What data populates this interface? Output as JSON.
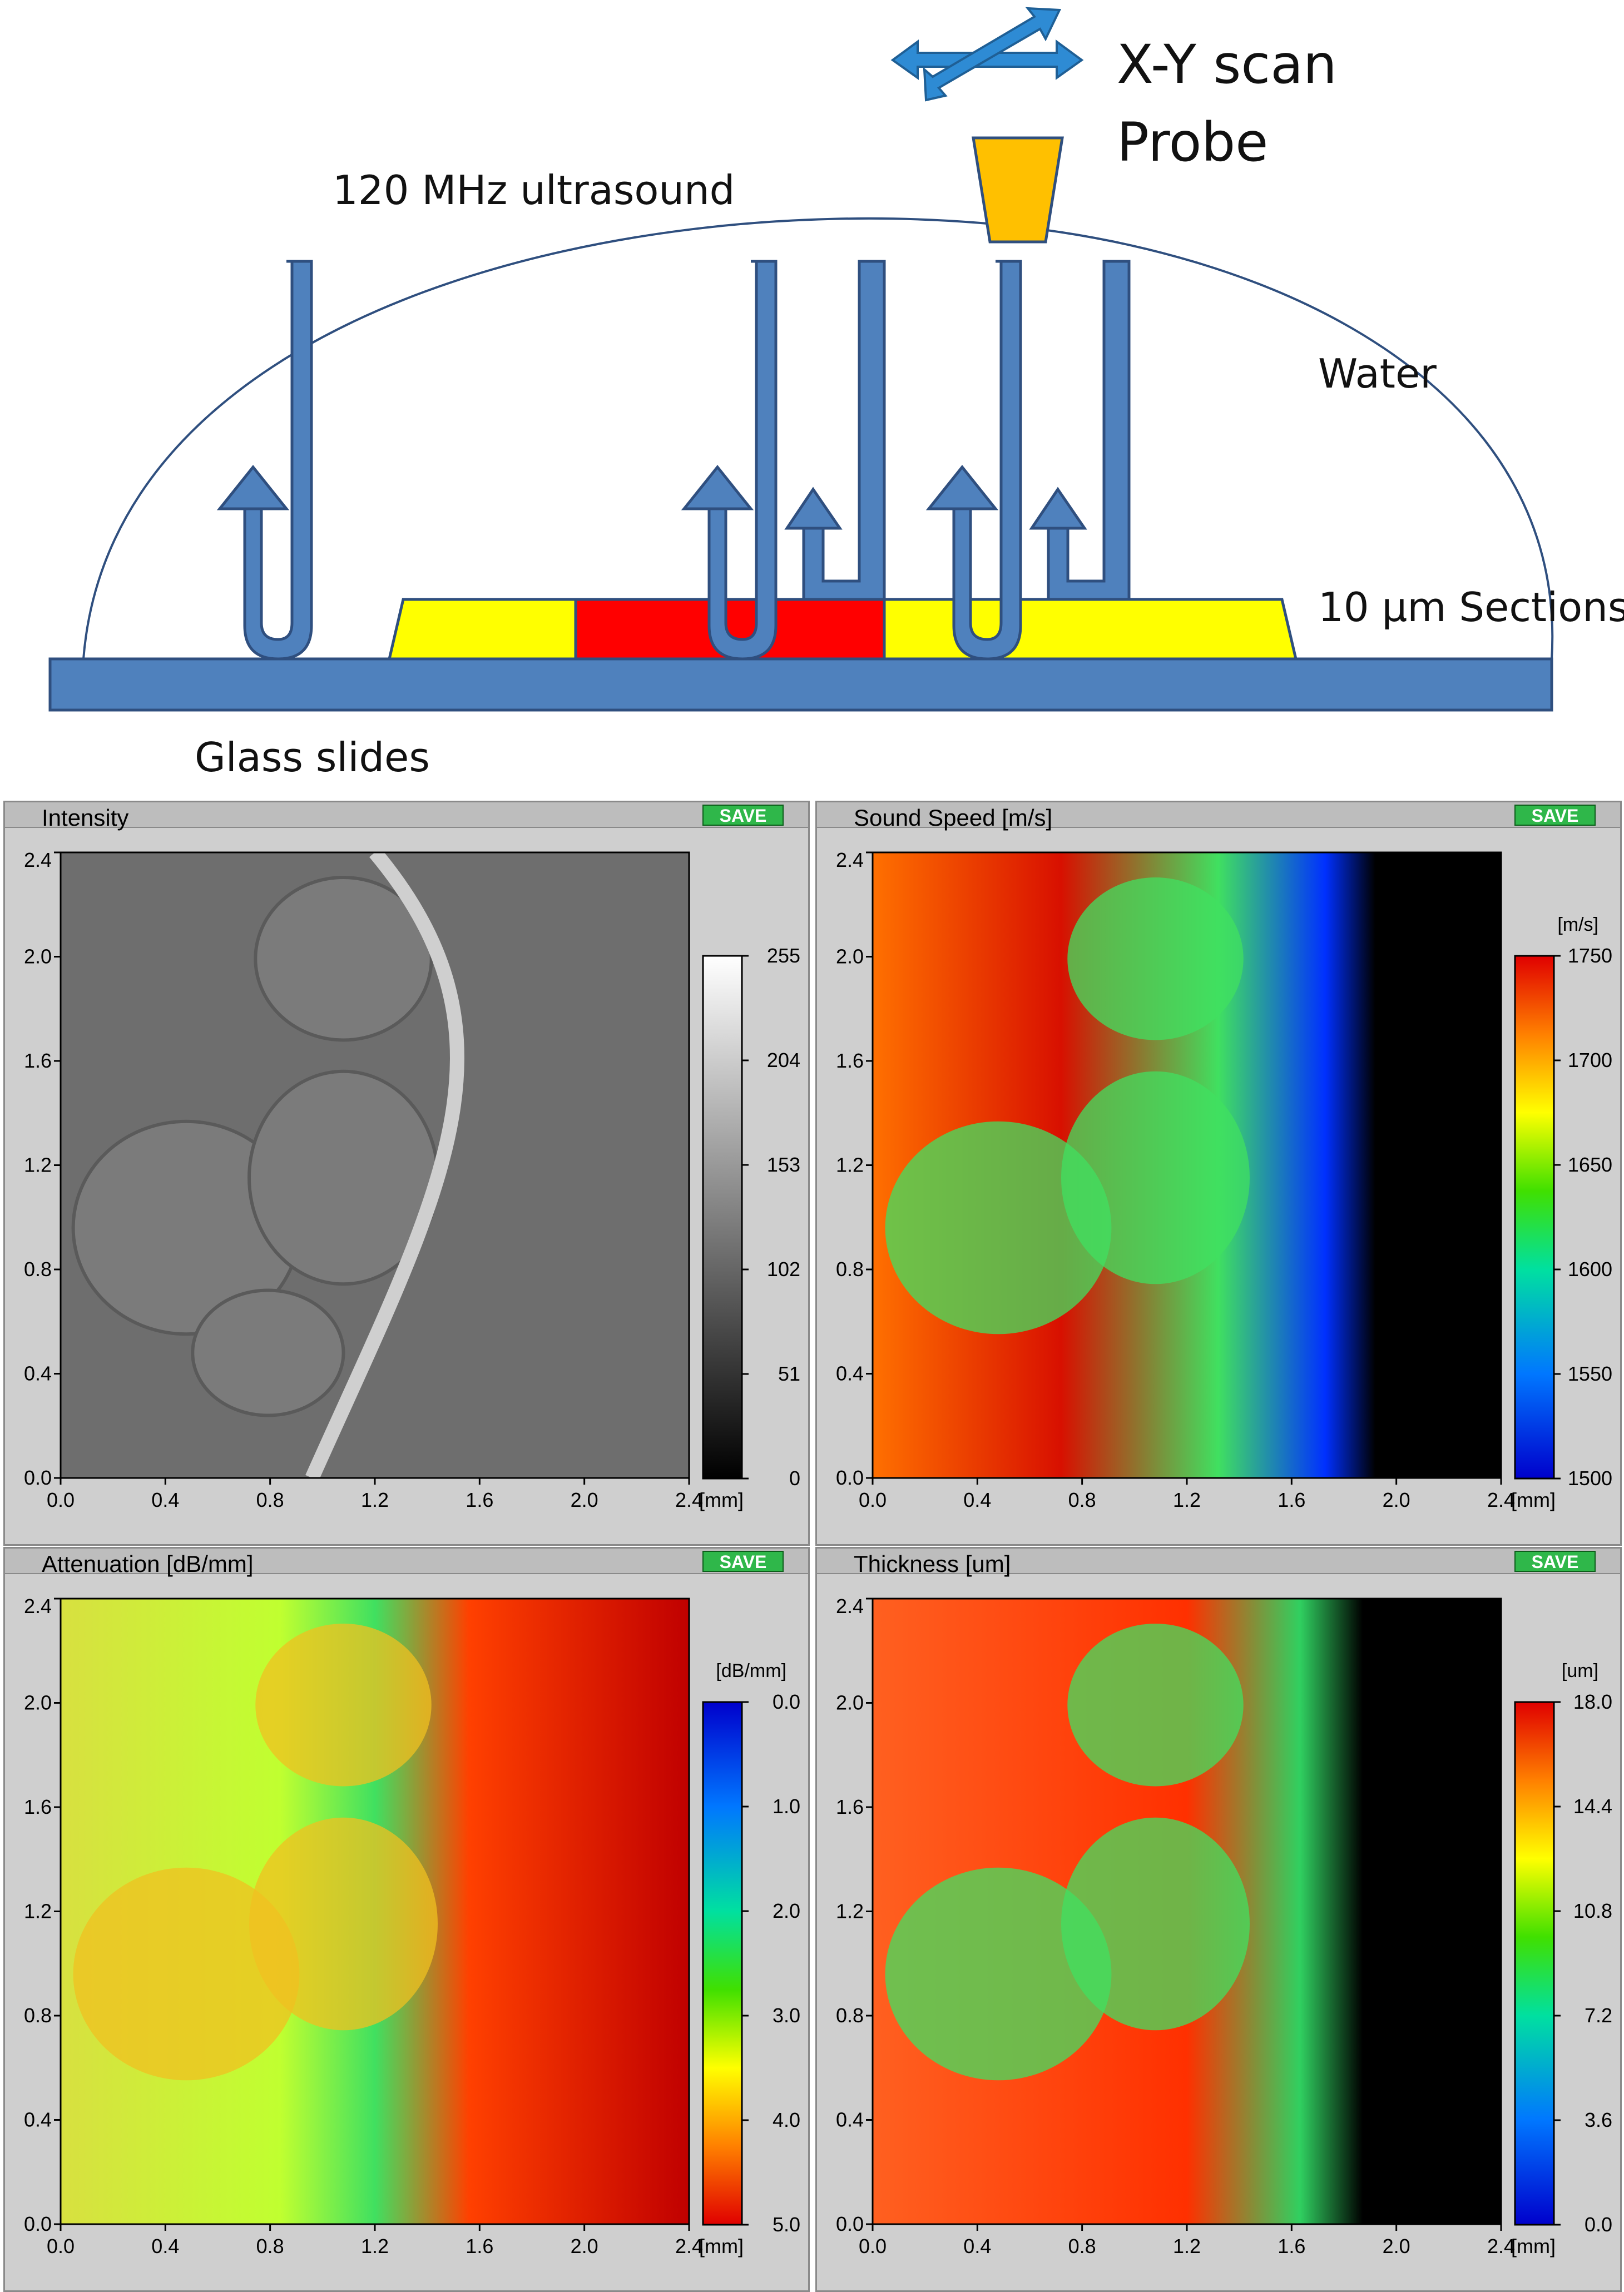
{
  "diagram": {
    "labels": {
      "ultrasound": "120 MHz ultrasound",
      "xy_scan": "X-Y scan",
      "probe": "Probe",
      "water": "Water",
      "sections": "10 µm Sections",
      "glass": "Glass slides"
    },
    "colors": {
      "slide": "#4f81bd",
      "arrow": "#4f81bd",
      "arrow_outline": "#2f4f7f",
      "section_yellow": "#ffff00",
      "section_red": "#ff0000",
      "probe": "#ffc000",
      "scan_arrows": "#2e8bd4"
    }
  },
  "save_label": "SAVE",
  "unit_mm": "[mm]",
  "x_ticks": [
    "0.0",
    "0.4",
    "0.8",
    "1.2",
    "1.6",
    "2.0",
    "2.4"
  ],
  "y_ticks": [
    "0.0",
    "0.4",
    "0.8",
    "1.2",
    "1.6",
    "2.0",
    "2.4"
  ],
  "panels": [
    {
      "title": "Intensity",
      "unit": "",
      "colormap": "gray",
      "scale_ticks": [
        "0",
        "51",
        "102",
        "153",
        "204",
        "255"
      ],
      "range": [
        0,
        255
      ]
    },
    {
      "title": "Sound Speed [m/s]",
      "unit": "[m/s]",
      "colormap": "jet",
      "scale_ticks": [
        "1500",
        "1550",
        "1600",
        "1650",
        "1700",
        "1750"
      ],
      "range": [
        1500,
        1750
      ]
    },
    {
      "title": "Attenuation [dB/mm]",
      "unit": "[dB/mm]",
      "colormap": "jet_reversed",
      "scale_ticks": [
        "5.0",
        "4.0",
        "3.0",
        "2.0",
        "1.0",
        "0.0"
      ],
      "range": [
        5.0,
        0.0
      ]
    },
    {
      "title": "Thickness [um]",
      "unit": "[um]",
      "colormap": "jet",
      "scale_ticks": [
        "0.0",
        "3.6",
        "7.2",
        "10.8",
        "14.4",
        "18.0"
      ],
      "range": [
        0.0,
        18.0
      ]
    }
  ]
}
